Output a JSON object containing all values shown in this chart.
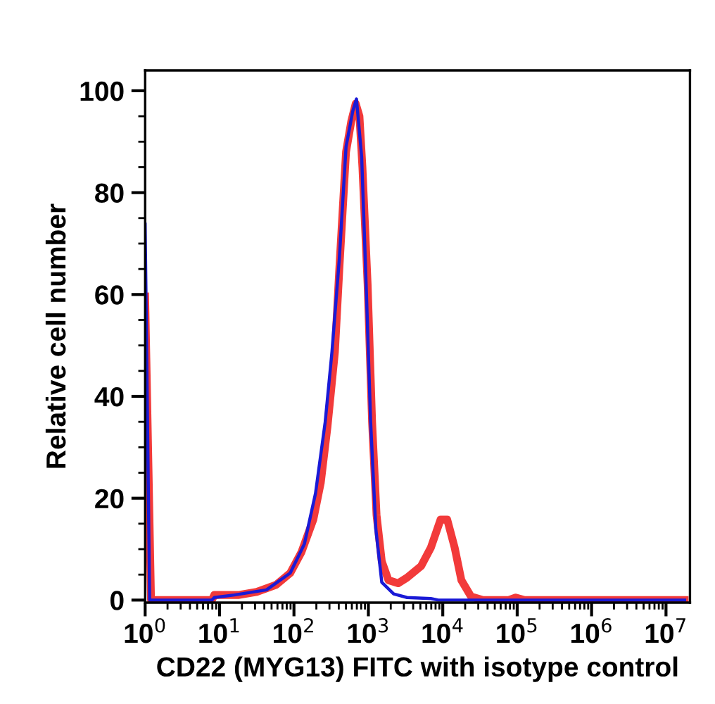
{
  "chart_data": {
    "type": "line",
    "xlabel": "CD22 (MYG13) FITC with isotype control",
    "ylabel": "Relative cell number",
    "log": "x",
    "xlim": [
      1,
      21000000
    ],
    "ylim": [
      -0.5,
      104
    ],
    "xticks": [
      {
        "value": 1,
        "label": "10$^{0}$"
      },
      {
        "value": 10,
        "label": "10$^{1}$"
      },
      {
        "value": 100,
        "label": "10$^{2}$"
      },
      {
        "value": 1000,
        "label": "10$^{3}$"
      },
      {
        "value": 10000,
        "label": "10$^{4}$"
      },
      {
        "value": 100000,
        "label": "10$^{5}$"
      },
      {
        "value": 1000000,
        "label": "10$^{6}$"
      },
      {
        "value": 10000000,
        "label": "10$^{7}$"
      },
      {
        "value": 2,
        "label": null
      },
      {
        "value": 3,
        "label": null
      },
      {
        "value": 4,
        "label": null
      },
      {
        "value": 5,
        "label": null
      },
      {
        "value": 6,
        "label": null
      },
      {
        "value": 7,
        "label": null
      },
      {
        "value": 8,
        "label": null
      },
      {
        "value": 9,
        "label": null
      },
      {
        "value": 20,
        "label": null
      },
      {
        "value": 30,
        "label": null
      },
      {
        "value": 40,
        "label": null
      },
      {
        "value": 50,
        "label": null
      },
      {
        "value": 60,
        "label": null
      },
      {
        "value": 70,
        "label": null
      },
      {
        "value": 80,
        "label": null
      },
      {
        "value": 90,
        "label": null
      },
      {
        "value": 200,
        "label": null
      },
      {
        "value": 300,
        "label": null
      },
      {
        "value": 400,
        "label": null
      },
      {
        "value": 500,
        "label": null
      },
      {
        "value": 600,
        "label": null
      },
      {
        "value": 700,
        "label": null
      },
      {
        "value": 800,
        "label": null
      },
      {
        "value": 900,
        "label": null
      },
      {
        "value": 2000,
        "label": null
      },
      {
        "value": 3000,
        "label": null
      },
      {
        "value": 4000,
        "label": null
      },
      {
        "value": 5000,
        "label": null
      },
      {
        "value": 6000,
        "label": null
      },
      {
        "value": 7000,
        "label": null
      },
      {
        "value": 8000,
        "label": null
      },
      {
        "value": 9000,
        "label": null
      },
      {
        "value": 20000,
        "label": null
      },
      {
        "value": 30000,
        "label": null
      },
      {
        "value": 40000,
        "label": null
      },
      {
        "value": 50000,
        "label": null
      },
      {
        "value": 60000,
        "label": null
      },
      {
        "value": 70000,
        "label": null
      },
      {
        "value": 80000,
        "label": null
      },
      {
        "value": 90000,
        "label": null
      },
      {
        "value": 200000,
        "label": null
      },
      {
        "value": 300000,
        "label": null
      },
      {
        "value": 400000,
        "label": null
      },
      {
        "value": 500000,
        "label": null
      },
      {
        "value": 600000,
        "label": null
      },
      {
        "value": 700000,
        "label": null
      },
      {
        "value": 800000,
        "label": null
      },
      {
        "value": 900000,
        "label": null
      },
      {
        "value": 2000000,
        "label": null
      },
      {
        "value": 3000000,
        "label": null
      },
      {
        "value": 4000000,
        "label": null
      },
      {
        "value": 5000000,
        "label": null
      },
      {
        "value": 6000000,
        "label": null
      },
      {
        "value": 7000000,
        "label": null
      },
      {
        "value": 8000000,
        "label": null
      },
      {
        "value": 9000000,
        "label": null
      }
    ],
    "yticks": [
      0,
      20,
      40,
      60,
      80,
      100,
      {
        "value": 5,
        "label": null
      },
      {
        "value": 10,
        "label": null
      },
      {
        "value": 15,
        "label": null
      },
      {
        "value": 25,
        "label": null
      },
      {
        "value": 30,
        "label": null
      },
      {
        "value": 35,
        "label": null
      },
      {
        "value": 45,
        "label": null
      },
      {
        "value": 50,
        "label": null
      },
      {
        "value": 55,
        "label": null
      },
      {
        "value": 65,
        "label": null
      },
      {
        "value": 70,
        "label": null
      },
      {
        "value": 75,
        "label": null
      },
      {
        "value": 85,
        "label": null
      },
      {
        "value": 90,
        "label": null
      },
      {
        "value": 95,
        "label": null
      }
    ],
    "grid": false,
    "legend": false,
    "marker": "none",
    "line_style": "solid",
    "series": [
      {
        "color": "#f23a3a",
        "x": [
          1,
          1.2,
          7.9,
          8.5,
          17.8,
          31.6,
          57.5,
          89,
          126,
          182,
          229,
          282,
          355,
          407,
          501,
          589,
          676,
          759,
          832,
          977,
          1122,
          1288,
          1514,
          1862,
          2512,
          3311,
          5129,
          6918,
          9333,
          11480,
          14450,
          17780,
          23990,
          34670,
          75860,
          95500,
          125900,
          17800000
        ],
        "values": [
          59.6,
          0,
          0,
          1,
          1,
          1.6,
          3,
          5.3,
          9.4,
          15.8,
          23,
          34,
          48.7,
          65,
          88,
          94,
          97.5,
          95,
          85,
          62,
          35,
          16.7,
          7.6,
          3.9,
          3.3,
          4.4,
          6.7,
          10.3,
          15.8,
          15.8,
          10.3,
          3.9,
          0.7,
          0,
          0,
          0.5,
          0,
          0
        ]
      },
      {
        "color": "#1a1ad6",
        "x": [
          1,
          1.15,
          7.9,
          8.5,
          15.8,
          42.7,
          89,
          138,
          195,
          263,
          324,
          407,
          501,
          617,
          692,
          813,
          933,
          1072,
          1259,
          1514,
          2188,
          3311,
          6918,
          8710,
          17800000
        ],
        "values": [
          73.8,
          0,
          0,
          0.5,
          1,
          2,
          5.3,
          11,
          21,
          35,
          48.7,
          67,
          89,
          96,
          98.4,
          87,
          62,
          35,
          14,
          3.5,
          1.2,
          0.5,
          0.3,
          0,
          0
        ]
      }
    ]
  }
}
